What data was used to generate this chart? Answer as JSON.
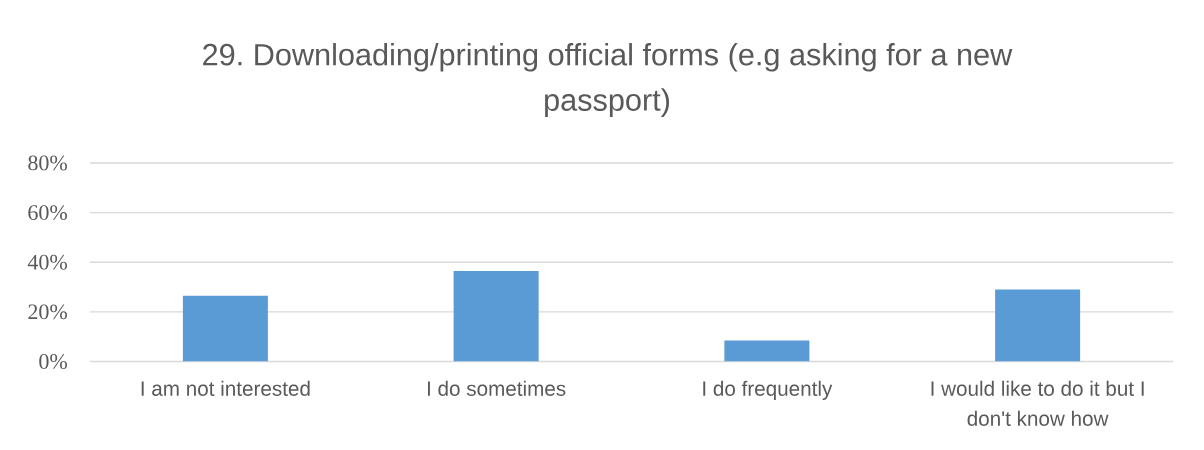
{
  "chart_data": {
    "type": "bar",
    "title": "29. Downloading/printing official forms (e.g asking for a new passport)",
    "categories": [
      "I am not interested",
      "I do sometimes",
      "I do frequently",
      "I would like to do it but I don't know how"
    ],
    "values": [
      26.5,
      36.5,
      8.5,
      29
    ],
    "color": "#5b9bd5",
    "ylim": [
      0,
      80
    ],
    "yticks": [
      {
        "value": 0,
        "label": "0%"
      },
      {
        "value": 20,
        "label": "20%"
      },
      {
        "value": 40,
        "label": "40%"
      },
      {
        "value": 60,
        "label": "60%"
      },
      {
        "value": 80,
        "label": "80%"
      }
    ],
    "grid": "y"
  }
}
